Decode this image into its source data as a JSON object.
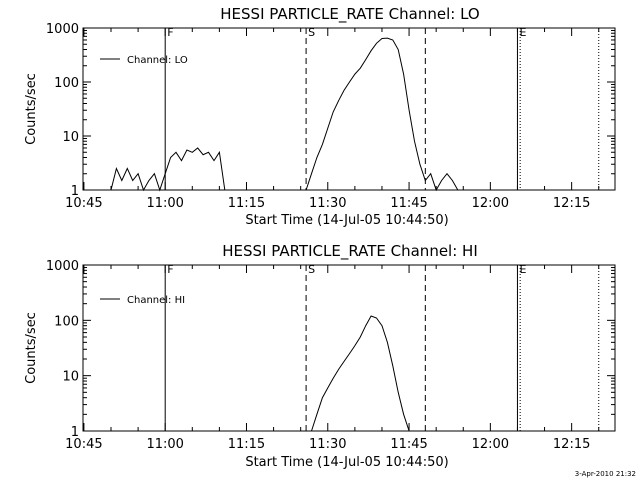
{
  "footer_stamp": "3-Apr-2010 21:32",
  "chart_data": [
    {
      "type": "line",
      "title": "HESSI PARTICLE_RATE Channel: LO",
      "xlabel": "Start Time (14-Jul-05 10:44:50)",
      "ylabel": "Counts/sec",
      "y_scale": "log",
      "ylim": [
        1,
        1000
      ],
      "xlim": [
        "10:44:50",
        "12:23:00"
      ],
      "x_ticks": [
        "10:45",
        "11:00",
        "11:15",
        "11:30",
        "11:45",
        "12:00",
        "12:15"
      ],
      "y_ticks": [
        "1",
        "10",
        "100",
        "1000"
      ],
      "legend": "Channel: LO",
      "legend_placement": "top-left",
      "grid": false,
      "markers": [
        {
          "label": "F",
          "time": "11:00",
          "style": "solid"
        },
        {
          "label": "S",
          "time": "11:26",
          "style": "dashed"
        },
        {
          "label": "",
          "time": "11:48",
          "style": "dashed"
        },
        {
          "label": "E",
          "time": "12:05",
          "style": "solid"
        },
        {
          "label": "",
          "time": "12:05:30",
          "style": "dotted"
        },
        {
          "label": "",
          "time": "12:20",
          "style": "dotted"
        }
      ],
      "series": [
        {
          "name": "Channel: LO",
          "x": [
            "10:50",
            "10:51",
            "10:52",
            "10:53",
            "10:54",
            "10:55",
            "10:56",
            "10:57",
            "10:58",
            "10:59",
            "11:00",
            "11:01",
            "11:02",
            "11:03",
            "11:04",
            "11:05",
            "11:06",
            "11:07",
            "11:08",
            "11:09",
            "11:10",
            "11:11",
            "11:26",
            "11:27",
            "11:28",
            "11:29",
            "11:30",
            "11:31",
            "11:32",
            "11:33",
            "11:34",
            "11:35",
            "11:36",
            "11:37",
            "11:38",
            "11:39",
            "11:40",
            "11:41",
            "11:42",
            "11:43",
            "11:44",
            "11:45",
            "11:46",
            "11:47",
            "11:48",
            "11:49",
            "11:50",
            "11:51",
            "11:52",
            "11:53",
            "11:54"
          ],
          "values": [
            1,
            2.5,
            1.5,
            2.5,
            1.5,
            2,
            1,
            1.5,
            2,
            1,
            2,
            4,
            5,
            3.5,
            5.5,
            5,
            6,
            4.5,
            5,
            3.5,
            5,
            1,
            1,
            2,
            4,
            7,
            14,
            28,
            45,
            70,
            100,
            140,
            180,
            260,
            380,
            520,
            640,
            650,
            600,
            400,
            140,
            30,
            8,
            3,
            1.5,
            2,
            1,
            1.5,
            2,
            1.5,
            1
          ]
        }
      ]
    },
    {
      "type": "line",
      "title": "HESSI PARTICLE_RATE Channel: HI",
      "xlabel": "Start Time (14-Jul-05 10:44:50)",
      "ylabel": "Counts/sec",
      "y_scale": "log",
      "ylim": [
        1,
        1000
      ],
      "xlim": [
        "10:44:50",
        "12:23:00"
      ],
      "x_ticks": [
        "10:45",
        "11:00",
        "11:15",
        "11:30",
        "11:45",
        "12:00",
        "12:15"
      ],
      "y_ticks": [
        "1",
        "10",
        "100",
        "1000"
      ],
      "legend": "Channel: HI",
      "legend_placement": "top-left",
      "grid": false,
      "markers": [
        {
          "label": "F",
          "time": "11:00",
          "style": "solid"
        },
        {
          "label": "S",
          "time": "11:26",
          "style": "dashed"
        },
        {
          "label": "",
          "time": "11:48",
          "style": "dashed"
        },
        {
          "label": "E",
          "time": "12:05",
          "style": "solid"
        },
        {
          "label": "",
          "time": "12:05:30",
          "style": "dotted"
        },
        {
          "label": "",
          "time": "12:20",
          "style": "dotted"
        }
      ],
      "series": [
        {
          "name": "Channel: HI",
          "x": [
            "11:27",
            "11:28",
            "11:29",
            "11:30",
            "11:31",
            "11:32",
            "11:33",
            "11:34",
            "11:35",
            "11:36",
            "11:37",
            "11:38",
            "11:39",
            "11:40",
            "11:41",
            "11:42",
            "11:43",
            "11:44",
            "11:45"
          ],
          "values": [
            1,
            2,
            4,
            6,
            9,
            13,
            18,
            25,
            35,
            50,
            80,
            120,
            110,
            80,
            40,
            15,
            5,
            2,
            1
          ]
        }
      ]
    }
  ]
}
